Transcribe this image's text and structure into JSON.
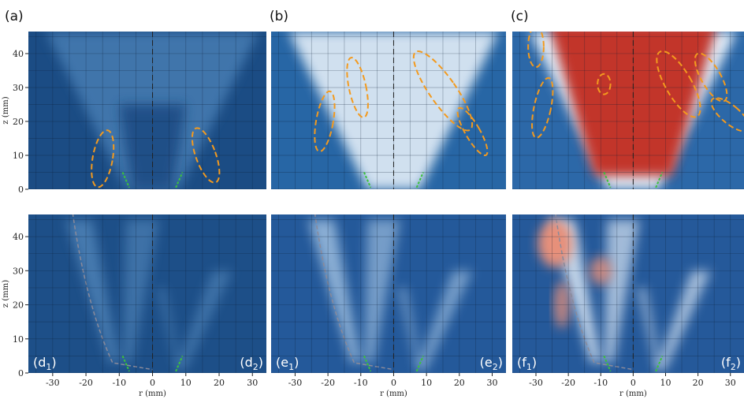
{
  "panels": [
    {
      "label": "(a)"
    },
    {
      "label": "(b)"
    },
    {
      "label": "(c)"
    },
    {
      "left_label": [
        "(d",
        "1",
        ")"
      ],
      "right_label": [
        "(d",
        "2",
        ")"
      ]
    },
    {
      "left_label": [
        "(e",
        "1",
        ")"
      ],
      "right_label": [
        "(e",
        "2",
        ")"
      ]
    },
    {
      "left_label": [
        "(f",
        "1",
        ")"
      ],
      "right_label": [
        "(f",
        "2",
        ")"
      ]
    }
  ],
  "y_axis": {
    "label": "z (mm)",
    "ticks": [
      0,
      10,
      20,
      30,
      40
    ]
  },
  "x_axis": {
    "label": "r (mm)",
    "ticks": [
      -30,
      -20,
      -10,
      0,
      10,
      20,
      30
    ]
  },
  "xlim": [
    -37.3,
    34.2
  ],
  "ylim": [
    0,
    46.5
  ]
}
